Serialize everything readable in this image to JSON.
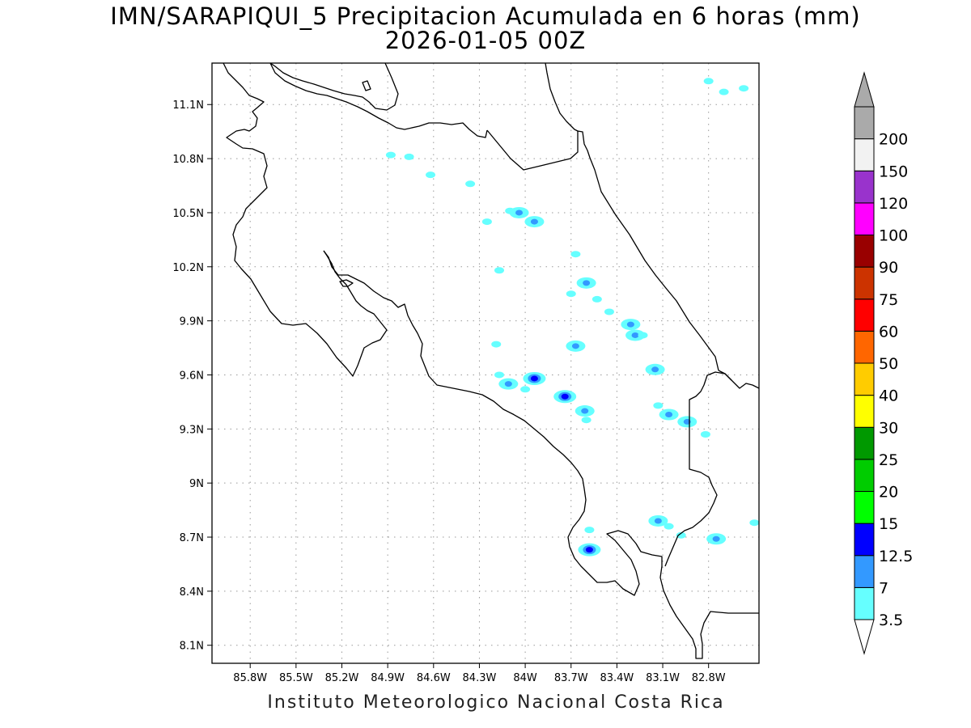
{
  "title": {
    "line1": "IMN/SARAPIQUI_5 Precipitacion Acumulada en 6 horas (mm)",
    "line2": "2026-01-05 00Z"
  },
  "footer": "Instituto Meteorologico Nacional Costa Rica",
  "map": {
    "lon_range": [
      -86.05,
      -82.47
    ],
    "lat_range": [
      8.0,
      11.33
    ],
    "lon_ticks": [
      "85.8W",
      "85.5W",
      "85.2W",
      "84.9W",
      "84.6W",
      "84.3W",
      "84W",
      "83.7W",
      "83.4W",
      "83.1W",
      "82.8W"
    ],
    "lat_ticks": [
      "8.1N",
      "8.4N",
      "8.7N",
      "9N",
      "9.3N",
      "9.6N",
      "9.9N",
      "10.2N",
      "10.5N",
      "10.8N",
      "11.1N"
    ],
    "grid": true
  },
  "colorbar": {
    "levels": [
      "3.5",
      "7",
      "12.5",
      "15",
      "20",
      "25",
      "30",
      "40",
      "50",
      "60",
      "75",
      "90",
      "100",
      "120",
      "150",
      "200"
    ],
    "colors": [
      "#66ffff",
      "#3399ff",
      "#0000ff",
      "#00ff00",
      "#00cc00",
      "#009900",
      "#ffff00",
      "#ffcc00",
      "#ff6600",
      "#ff0000",
      "#cc3300",
      "#990000",
      "#ff00ff",
      "#9933cc",
      "#f2f2f2",
      "#aaaaaa"
    ],
    "under_color": "#ffffff",
    "over_color": "#aaaaaa"
  },
  "precip_cells": [
    {
      "lon": -84.88,
      "lat": 10.82,
      "color": "#66ffff"
    },
    {
      "lon": -84.76,
      "lat": 10.81,
      "color": "#66ffff"
    },
    {
      "lon": -84.36,
      "lat": 10.66,
      "color": "#66ffff"
    },
    {
      "lon": -84.1,
      "lat": 10.51,
      "color": "#66ffff"
    },
    {
      "lon": -84.04,
      "lat": 10.5,
      "color": "#3399ff"
    },
    {
      "lon": -84.25,
      "lat": 10.45,
      "color": "#66ffff"
    },
    {
      "lon": -83.94,
      "lat": 10.45,
      "color": "#3399ff"
    },
    {
      "lon": -83.67,
      "lat": 10.27,
      "color": "#66ffff"
    },
    {
      "lon": -83.6,
      "lat": 10.11,
      "color": "#3399ff"
    },
    {
      "lon": -83.7,
      "lat": 10.05,
      "color": "#66ffff"
    },
    {
      "lon": -83.53,
      "lat": 10.02,
      "color": "#66ffff"
    },
    {
      "lon": -83.45,
      "lat": 9.95,
      "color": "#66ffff"
    },
    {
      "lon": -83.31,
      "lat": 9.88,
      "color": "#3399ff"
    },
    {
      "lon": -83.28,
      "lat": 9.82,
      "color": "#3399ff"
    },
    {
      "lon": -83.23,
      "lat": 9.82,
      "color": "#66ffff"
    },
    {
      "lon": -83.67,
      "lat": 9.76,
      "color": "#3399ff"
    },
    {
      "lon": -83.15,
      "lat": 9.63,
      "color": "#3399ff"
    },
    {
      "lon": -84.17,
      "lat": 9.6,
      "color": "#66ffff"
    },
    {
      "lon": -84.11,
      "lat": 9.55,
      "color": "#3399ff"
    },
    {
      "lon": -83.94,
      "lat": 9.58,
      "color": "#0000ff"
    },
    {
      "lon": -84.0,
      "lat": 9.52,
      "color": "#66ffff"
    },
    {
      "lon": -83.74,
      "lat": 9.48,
      "color": "#0000ff"
    },
    {
      "lon": -83.61,
      "lat": 9.4,
      "color": "#3399ff"
    },
    {
      "lon": -83.6,
      "lat": 9.35,
      "color": "#66ffff"
    },
    {
      "lon": -83.13,
      "lat": 9.43,
      "color": "#66ffff"
    },
    {
      "lon": -83.06,
      "lat": 9.38,
      "color": "#3399ff"
    },
    {
      "lon": -82.94,
      "lat": 9.34,
      "color": "#3399ff"
    },
    {
      "lon": -82.82,
      "lat": 9.27,
      "color": "#66ffff"
    },
    {
      "lon": -83.13,
      "lat": 8.79,
      "color": "#3399ff"
    },
    {
      "lon": -83.06,
      "lat": 8.76,
      "color": "#66ffff"
    },
    {
      "lon": -82.98,
      "lat": 8.71,
      "color": "#66ffff"
    },
    {
      "lon": -83.58,
      "lat": 8.74,
      "color": "#66ffff"
    },
    {
      "lon": -83.58,
      "lat": 8.63,
      "color": "#0000ff"
    },
    {
      "lon": -82.75,
      "lat": 8.69,
      "color": "#3399ff"
    },
    {
      "lon": -82.5,
      "lat": 8.78,
      "color": "#66ffff"
    },
    {
      "lon": -82.8,
      "lat": 11.23,
      "color": "#66ffff"
    },
    {
      "lon": -82.7,
      "lat": 11.17,
      "color": "#66ffff"
    },
    {
      "lon": -82.57,
      "lat": 11.19,
      "color": "#66ffff"
    },
    {
      "lon": -84.19,
      "lat": 9.77,
      "color": "#66ffff"
    },
    {
      "lon": -84.17,
      "lat": 10.18,
      "color": "#66ffff"
    },
    {
      "lon": -84.62,
      "lat": 10.71,
      "color": "#66ffff"
    }
  ]
}
